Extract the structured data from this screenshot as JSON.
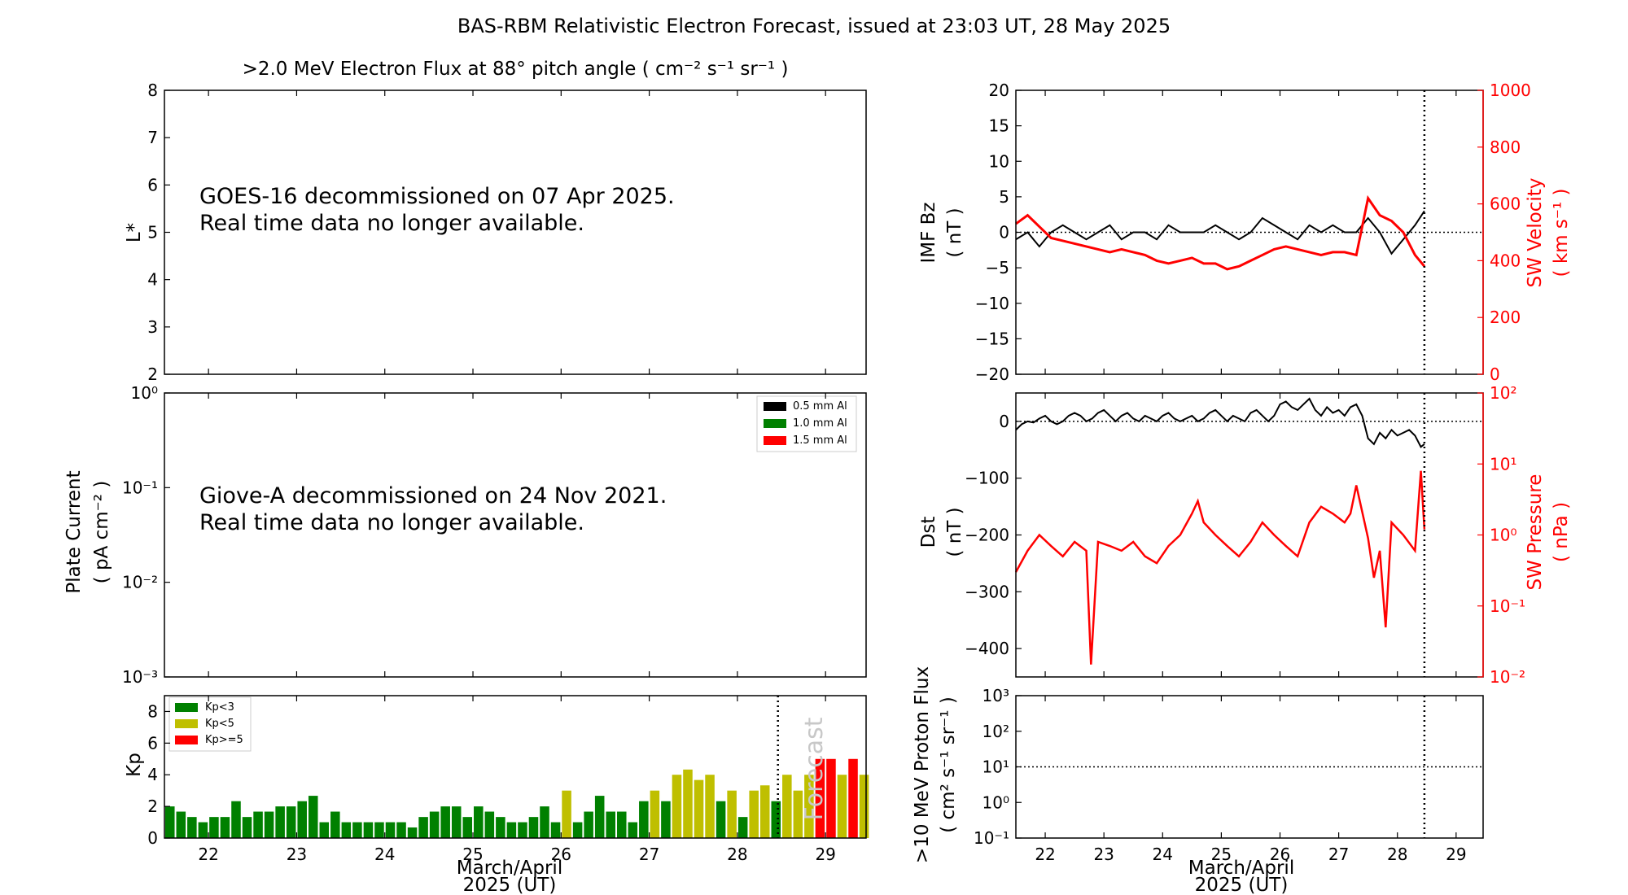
{
  "figure": {
    "title": "BAS-RBM Relativistic Electron Forecast, issued at 23:03 UT, 28 May 2025"
  },
  "colors": {
    "black": "#000000",
    "red": "#ff0000",
    "kp_green": "#008000",
    "kp_yellow": "#bfbf00",
    "kp_red": "#ff0000",
    "forecast_text": "#c8c8c8"
  },
  "chart_data": [
    {
      "id": "flux",
      "type": "heatmap",
      "title": ">2.0 MeV Electron Flux at 88° pitch angle ( cm⁻² s⁻¹ sr⁻¹ )",
      "ylabel": "L*",
      "ylim": [
        2,
        8
      ],
      "yticks": [
        "2",
        "3",
        "4",
        "5",
        "6",
        "7",
        "8"
      ],
      "message_line1": "GOES-16 decommissioned on 07 Apr 2025.",
      "message_line2": "Real time data no longer available."
    },
    {
      "id": "plate",
      "type": "line",
      "ylabel": "Plate Current",
      "ylabel_units": "( pA cm⁻² )",
      "yscale": "log",
      "ylim": [
        0.001,
        1
      ],
      "yticks": [
        "10⁻³",
        "10⁻²",
        "10⁻¹",
        "10⁰"
      ],
      "legend": [
        "0.5 mm Al",
        "1.0 mm Al",
        "1.5 mm Al"
      ],
      "legend_colors": [
        "#000000",
        "#008000",
        "#ff0000"
      ],
      "legend_position": "top-right",
      "message_line1": "Giove-A decommissioned on 24 Nov 2021.",
      "message_line2": "Real time data no longer available."
    },
    {
      "id": "kp",
      "type": "bar",
      "ylabel": "Kp",
      "ylim": [
        0,
        9
      ],
      "yticks": [
        "0",
        "2",
        "4",
        "6",
        "8"
      ],
      "xlabel_line1": "March/April",
      "xlabel_line2": "2025 (UT)",
      "xticks": [
        "22",
        "23",
        "24",
        "25",
        "26",
        "27",
        "28",
        "29"
      ],
      "xlim": [
        21.5,
        29.46
      ],
      "now": 28.46,
      "forecast_label": "Forecast",
      "legend": [
        "Kp<3",
        "Kp<5",
        "Kp>=5"
      ],
      "legend_position": "top-left",
      "bar_start": 21.5,
      "bar_width_days": 0.125,
      "values": [
        2.0,
        1.67,
        1.33,
        1.0,
        1.33,
        1.33,
        2.33,
        1.33,
        1.67,
        1.67,
        2.0,
        2.0,
        2.33,
        2.67,
        1.0,
        1.67,
        1.0,
        1.0,
        1.0,
        1.0,
        1.0,
        1.0,
        0.67,
        1.33,
        1.67,
        2.0,
        2.0,
        1.33,
        2.0,
        1.67,
        1.33,
        1.0,
        1.0,
        1.33,
        2.0,
        1.0,
        3.0,
        1.0,
        1.67,
        2.67,
        1.67,
        1.67,
        1.0,
        2.33,
        3.0,
        2.33,
        4.0,
        4.33,
        3.67,
        4.0,
        2.33,
        3.0,
        1.33,
        3.0,
        3.33,
        2.33,
        4.0,
        3.0,
        4.0,
        5.0,
        5.0,
        4.0,
        5.0,
        4.0
      ]
    },
    {
      "id": "imf",
      "type": "line",
      "ylabel": "IMF Bz",
      "ylabel_units": "( nT )",
      "ylim": [
        -20,
        20
      ],
      "yticks": [
        "−20",
        "−15",
        "−10",
        "−5",
        "0",
        "5",
        "10",
        "15",
        "20"
      ],
      "y2label": "SW Velocity",
      "y2label_units": "( km s⁻¹ )",
      "y2lim": [
        0,
        1000
      ],
      "y2ticks": [
        "0",
        "200",
        "400",
        "600",
        "800",
        "1000"
      ],
      "series": [
        {
          "color": "#000000",
          "x": [
            21.5,
            21.7,
            21.9,
            22.1,
            22.3,
            22.5,
            22.7,
            22.9,
            23.1,
            23.3,
            23.5,
            23.7,
            23.9,
            24.1,
            24.3,
            24.5,
            24.7,
            24.9,
            25.1,
            25.3,
            25.5,
            25.7,
            25.9,
            26.1,
            26.3,
            26.5,
            26.7,
            26.9,
            27.1,
            27.3,
            27.5,
            27.7,
            27.9,
            28.1,
            28.3,
            28.46
          ],
          "y": [
            -1,
            0,
            -2,
            0,
            1,
            0,
            -1,
            0,
            1,
            -1,
            0,
            0,
            -1,
            1,
            0,
            0,
            0,
            1,
            0,
            -1,
            0,
            2,
            1,
            0,
            -1,
            1,
            0,
            1,
            0,
            0,
            2,
            0,
            -3,
            -1,
            1,
            3
          ]
        },
        {
          "color": "#ff0000",
          "x": [
            21.5,
            21.7,
            21.9,
            22.1,
            22.3,
            22.5,
            22.7,
            22.9,
            23.1,
            23.3,
            23.5,
            23.7,
            23.9,
            24.1,
            24.3,
            24.5,
            24.7,
            24.9,
            25.1,
            25.3,
            25.5,
            25.7,
            25.9,
            26.1,
            26.3,
            26.5,
            26.7,
            26.9,
            27.1,
            27.3,
            27.5,
            27.7,
            27.9,
            28.1,
            28.3,
            28.46
          ],
          "y": [
            530,
            560,
            520,
            480,
            470,
            460,
            450,
            440,
            430,
            440,
            430,
            420,
            400,
            390,
            400,
            410,
            390,
            390,
            370,
            380,
            400,
            420,
            440,
            450,
            440,
            430,
            420,
            430,
            430,
            420,
            620,
            560,
            540,
            500,
            420,
            380
          ]
        }
      ]
    },
    {
      "id": "dst",
      "type": "line",
      "ylabel": "Dst",
      "ylabel_units": "( nT )",
      "ylim": [
        -450,
        50
      ],
      "yticks": [
        "−400",
        "−300",
        "−200",
        "−100",
        "0"
      ],
      "y2label": "SW Pressure",
      "y2label_units": "( nPa )",
      "y2scale": "log",
      "y2lim": [
        0.01,
        100
      ],
      "y2ticks": [
        "10⁻²",
        "10⁻¹",
        "10⁰",
        "10¹",
        "10²"
      ],
      "series": [
        {
          "color": "#000000",
          "x": [
            21.5,
            21.6,
            21.7,
            21.8,
            21.9,
            22.0,
            22.1,
            22.2,
            22.3,
            22.4,
            22.5,
            22.6,
            22.7,
            22.8,
            22.9,
            23.0,
            23.1,
            23.2,
            23.3,
            23.4,
            23.5,
            23.6,
            23.7,
            23.8,
            23.9,
            24.0,
            24.1,
            24.2,
            24.3,
            24.4,
            24.5,
            24.6,
            24.7,
            24.8,
            24.9,
            25.0,
            25.1,
            25.2,
            25.3,
            25.4,
            25.5,
            25.6,
            25.7,
            25.8,
            25.9,
            26.0,
            26.1,
            26.2,
            26.3,
            26.4,
            26.5,
            26.6,
            26.7,
            26.8,
            26.9,
            27.0,
            27.1,
            27.2,
            27.3,
            27.4,
            27.5,
            27.6,
            27.7,
            27.8,
            27.9,
            28.0,
            28.1,
            28.2,
            28.3,
            28.4,
            28.46
          ],
          "y": [
            -15,
            -5,
            0,
            -2,
            5,
            10,
            0,
            -5,
            0,
            10,
            15,
            10,
            0,
            5,
            15,
            20,
            10,
            0,
            10,
            15,
            5,
            0,
            10,
            5,
            0,
            10,
            15,
            5,
            0,
            5,
            10,
            0,
            5,
            15,
            20,
            10,
            0,
            10,
            5,
            0,
            15,
            20,
            10,
            0,
            10,
            30,
            35,
            25,
            20,
            30,
            40,
            20,
            10,
            25,
            15,
            20,
            10,
            25,
            30,
            10,
            -30,
            -40,
            -20,
            -30,
            -15,
            -25,
            -20,
            -15,
            -25,
            -45,
            -40
          ]
        },
        {
          "color": "#ff0000",
          "x": [
            21.5,
            21.7,
            21.9,
            22.1,
            22.3,
            22.5,
            22.7,
            22.78,
            22.9,
            23.1,
            23.3,
            23.5,
            23.7,
            23.9,
            24.1,
            24.3,
            24.5,
            24.6,
            24.7,
            24.9,
            25.1,
            25.3,
            25.5,
            25.7,
            25.9,
            26.1,
            26.3,
            26.5,
            26.7,
            26.9,
            27.1,
            27.2,
            27.3,
            27.5,
            27.6,
            27.7,
            27.8,
            27.9,
            28.1,
            28.3,
            28.4,
            28.46
          ],
          "y": [
            0.3,
            0.6,
            1.0,
            0.7,
            0.5,
            0.8,
            0.6,
            0.015,
            0.8,
            0.7,
            0.6,
            0.8,
            0.5,
            0.4,
            0.7,
            1.0,
            2.0,
            3.0,
            1.5,
            1.0,
            0.7,
            0.5,
            0.8,
            1.5,
            1.0,
            0.7,
            0.5,
            1.5,
            2.5,
            2.0,
            1.5,
            2.0,
            5.0,
            0.9,
            0.25,
            0.6,
            0.05,
            1.5,
            1.0,
            0.6,
            8.0,
            1.2
          ]
        }
      ]
    },
    {
      "id": "proton",
      "type": "line",
      "ylabel": ">10 MeV Proton Flux",
      "ylabel_units": "( cm² s⁻¹ sr⁻¹ )",
      "yscale": "log",
      "ylim": [
        0.1,
        1000
      ],
      "yticks": [
        "10⁻¹",
        "10⁰",
        "10¹",
        "10²",
        "10³"
      ],
      "xlabel_line1": "March/April",
      "xlabel_line2": "2025 (UT)",
      "xticks": [
        "22",
        "23",
        "24",
        "25",
        "26",
        "27",
        "28",
        "29"
      ],
      "xlim": [
        21.5,
        29.46
      ],
      "now": 28.46,
      "threshold": 10
    }
  ]
}
